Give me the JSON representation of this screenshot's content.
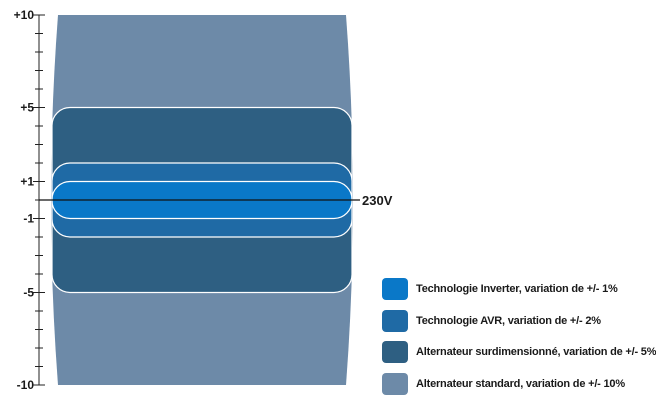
{
  "chart_data": {
    "type": "area",
    "title": "",
    "xlabel": "",
    "ylabel": "",
    "ylim": [
      -10,
      10
    ],
    "y_ticks": [
      "+10",
      "+5",
      "+1",
      "-1",
      "-5",
      "-10"
    ],
    "reference_line": {
      "value": 0,
      "label": "230V"
    },
    "series": [
      {
        "name": "Alternateur standard, variation de +/- 10%",
        "low": -10,
        "high": 10,
        "color": "#6d8aa8"
      },
      {
        "name": "Alternateur surdimensionné, variation de +/- 5%",
        "low": -5,
        "high": 5,
        "color": "#2e5f82"
      },
      {
        "name": "Technologie AVR, variation de +/- 2%",
        "low": -2,
        "high": 2,
        "color": "#1f6aa5"
      },
      {
        "name": "Technologie Inverter, variation de +/- 1%",
        "low": -1,
        "high": 1,
        "color": "#0a78c8"
      }
    ],
    "legend_position": "bottom-right",
    "grid": false
  }
}
